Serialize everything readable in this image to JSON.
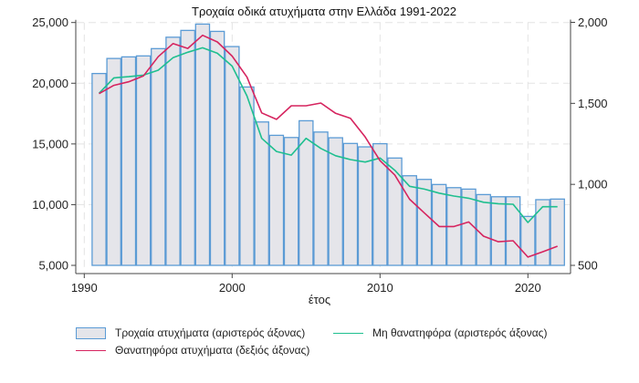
{
  "chart_data": {
    "type": "bar+line",
    "title": "Τροχαία οδικά ατυχήματα στην Ελλάδα 1991-2022",
    "xlabel": "έτος",
    "ylabel_left": "",
    "ylabel_right": "",
    "x": [
      1991,
      1992,
      1993,
      1994,
      1995,
      1996,
      1997,
      1998,
      1999,
      2000,
      2001,
      2002,
      2003,
      2004,
      2005,
      2006,
      2007,
      2008,
      2009,
      2010,
      2011,
      2012,
      2013,
      2014,
      2015,
      2016,
      2017,
      2018,
      2019,
      2020,
      2021,
      2022
    ],
    "xlim": [
      1990,
      2023
    ],
    "x_ticks": [
      1990,
      2000,
      2010,
      2020
    ],
    "x_tick_labels": [
      "1990",
      "2000",
      "2010",
      "2020"
    ],
    "ylim_left": [
      5000,
      25000
    ],
    "y_ticks_left": [
      5000,
      10000,
      15000,
      20000,
      25000
    ],
    "y_tick_labels_left": [
      "5,000",
      "10,000",
      "15,000",
      "20,000",
      "25,000"
    ],
    "ylim_right": [
      500,
      2000
    ],
    "y_ticks_right": [
      500,
      1000,
      1500,
      2000
    ],
    "y_tick_labels_right": [
      "500",
      "1,000",
      "1,500",
      "2,000"
    ],
    "grid": true,
    "legend_position": "bottom",
    "series": [
      {
        "name": "Τροχαία ατυχήματα (αριστερός άξονας)",
        "type": "bar",
        "axis": "left",
        "color": "#5b9bd5",
        "fill": "#e5e5ea",
        "values": [
          20800,
          22040,
          22170,
          22250,
          22850,
          23790,
          24350,
          24870,
          24270,
          23020,
          19690,
          16810,
          15710,
          15530,
          16910,
          15980,
          15510,
          15040,
          14760,
          15020,
          13840,
          12380,
          12080,
          11660,
          11400,
          11280,
          10830,
          10650,
          10650,
          9030,
          10410,
          10460
        ]
      },
      {
        "name": "Μη θανατηφόρα (αριστερός άξονας)",
        "type": "line",
        "axis": "left",
        "color": "#1fbf8f",
        "values": [
          19170,
          20440,
          20540,
          20670,
          21070,
          22100,
          22550,
          22920,
          22470,
          21410,
          18960,
          15460,
          14380,
          14080,
          15460,
          14630,
          14030,
          13710,
          13510,
          13840,
          12830,
          11510,
          11280,
          10950,
          10710,
          10530,
          10200,
          10080,
          10030,
          8530,
          9830,
          9830
        ]
      },
      {
        "name": "Θανατηφόρα ατυχήματα (δεξιός άξονας)",
        "type": "line",
        "axis": "right",
        "color": "#d6245f",
        "values": [
          1560,
          1611,
          1633,
          1669,
          1788,
          1869,
          1839,
          1920,
          1879,
          1792,
          1663,
          1441,
          1401,
          1485,
          1485,
          1502,
          1438,
          1408,
          1292,
          1146,
          1058,
          908,
          823,
          740,
          740,
          768,
          680,
          646,
          652,
          551,
          584,
          618
        ]
      }
    ]
  }
}
